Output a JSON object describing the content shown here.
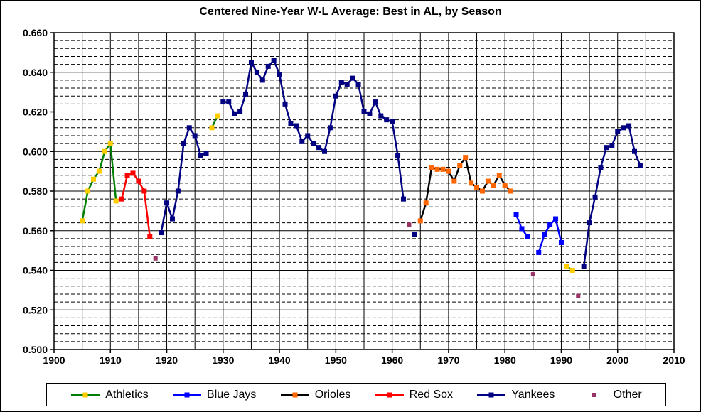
{
  "title": "Centered Nine-Year W-L Average: Best in AL, by Season",
  "chart_data": {
    "type": "line",
    "title": "Centered Nine-Year W-L Average: Best in AL, by Season",
    "xlabel": "",
    "ylabel": "",
    "xlim": [
      1900,
      2010
    ],
    "ylim": [
      0.5,
      0.66
    ],
    "x_grid_step": 5,
    "y_major_step": 0.02,
    "y_minor_step": 0.004,
    "grid": "major-solid-minor-dashed",
    "legend_position": "bottom",
    "x_ticks": [
      1900,
      1910,
      1920,
      1930,
      1940,
      1950,
      1960,
      1970,
      1980,
      1990,
      2000,
      2010
    ],
    "x_tick_labels": [
      "1900",
      "1910",
      "1920",
      "1930",
      "1940",
      "1950",
      "1960",
      "1970",
      "1980",
      "1990",
      "2000",
      "2010"
    ],
    "y_ticks": [
      0.66,
      0.64,
      0.62,
      0.6,
      0.58,
      0.56,
      0.54,
      0.52,
      0.5
    ],
    "y_tick_labels": [
      "0.660",
      "0.640",
      "0.620",
      "0.600",
      "0.580",
      "0.560",
      "0.540",
      "0.520",
      "0.500"
    ],
    "series": [
      {
        "name": "Athletics",
        "line_color": "#008000",
        "marker_color": "#FFCC00",
        "marker_only": false,
        "segments": [
          [
            [
              1905,
              0.565
            ],
            [
              1906,
              0.58
            ],
            [
              1907,
              0.586
            ],
            [
              1908,
              0.59
            ],
            [
              1909,
              0.6
            ],
            [
              1910,
              0.604
            ],
            [
              1911,
              0.575
            ]
          ],
          [
            [
              1928,
              0.612
            ],
            [
              1929,
              0.618
            ]
          ],
          [
            [
              1991,
              0.542
            ],
            [
              1992,
              0.54
            ]
          ]
        ]
      },
      {
        "name": "Blue Jays",
        "line_color": "#0000FF",
        "marker_color": "#0000FF",
        "marker_only": false,
        "segments": [
          [
            [
              1982,
              0.568
            ],
            [
              1983,
              0.561
            ],
            [
              1984,
              0.557
            ]
          ],
          [
            [
              1986,
              0.549
            ],
            [
              1987,
              0.558
            ],
            [
              1988,
              0.563
            ],
            [
              1989,
              0.566
            ],
            [
              1990,
              0.554
            ]
          ]
        ]
      },
      {
        "name": "Orioles",
        "line_color": "#000000",
        "marker_color": "#FF6600",
        "marker_only": false,
        "segments": [
          [
            [
              1965,
              0.565
            ],
            [
              1966,
              0.574
            ],
            [
              1967,
              0.592
            ],
            [
              1968,
              0.591
            ],
            [
              1969,
              0.591
            ],
            [
              1970,
              0.59
            ],
            [
              1971,
              0.585
            ],
            [
              1972,
              0.593
            ],
            [
              1973,
              0.597
            ],
            [
              1974,
              0.584
            ],
            [
              1975,
              0.582
            ],
            [
              1976,
              0.58
            ],
            [
              1977,
              0.585
            ],
            [
              1978,
              0.583
            ],
            [
              1979,
              0.588
            ],
            [
              1980,
              0.583
            ],
            [
              1981,
              0.58
            ]
          ]
        ]
      },
      {
        "name": "Red Sox",
        "line_color": "#FF0000",
        "marker_color": "#FF0000",
        "marker_only": false,
        "segments": [
          [
            [
              1912,
              0.576
            ],
            [
              1913,
              0.588
            ],
            [
              1914,
              0.589
            ],
            [
              1915,
              0.585
            ],
            [
              1916,
              0.58
            ],
            [
              1917,
              0.557
            ]
          ]
        ]
      },
      {
        "name": "Yankees",
        "line_color": "#000080",
        "marker_color": "#000080",
        "marker_only": false,
        "segments": [
          [
            [
              1919,
              0.559
            ],
            [
              1920,
              0.574
            ],
            [
              1921,
              0.566
            ],
            [
              1922,
              0.58
            ],
            [
              1923,
              0.604
            ],
            [
              1924,
              0.612
            ],
            [
              1925,
              0.608
            ],
            [
              1926,
              0.598
            ],
            [
              1927,
              0.599
            ]
          ],
          [
            [
              1930,
              0.625
            ],
            [
              1931,
              0.625
            ],
            [
              1932,
              0.619
            ],
            [
              1933,
              0.62
            ],
            [
              1934,
              0.629
            ],
            [
              1935,
              0.645
            ],
            [
              1936,
              0.64
            ],
            [
              1937,
              0.636
            ],
            [
              1938,
              0.643
            ],
            [
              1939,
              0.646
            ],
            [
              1940,
              0.639
            ],
            [
              1941,
              0.624
            ],
            [
              1942,
              0.614
            ],
            [
              1943,
              0.613
            ],
            [
              1944,
              0.605
            ],
            [
              1945,
              0.608
            ],
            [
              1946,
              0.604
            ],
            [
              1947,
              0.602
            ],
            [
              1948,
              0.6
            ],
            [
              1949,
              0.612
            ],
            [
              1950,
              0.628
            ],
            [
              1951,
              0.635
            ],
            [
              1952,
              0.634
            ],
            [
              1953,
              0.637
            ],
            [
              1954,
              0.634
            ],
            [
              1955,
              0.62
            ],
            [
              1956,
              0.619
            ],
            [
              1957,
              0.625
            ],
            [
              1958,
              0.618
            ],
            [
              1959,
              0.616
            ],
            [
              1960,
              0.615
            ],
            [
              1961,
              0.598
            ],
            [
              1962,
              0.576
            ]
          ],
          [
            [
              1964,
              0.558
            ]
          ],
          [
            [
              1994,
              0.542
            ],
            [
              1995,
              0.564
            ],
            [
              1996,
              0.577
            ],
            [
              1997,
              0.592
            ],
            [
              1998,
              0.602
            ],
            [
              1999,
              0.603
            ],
            [
              2000,
              0.61
            ],
            [
              2001,
              0.612
            ],
            [
              2002,
              0.613
            ],
            [
              2003,
              0.6
            ],
            [
              2004,
              0.593
            ]
          ]
        ]
      },
      {
        "name": "Other",
        "line_color": null,
        "marker_color": "#993366",
        "marker_only": true,
        "segments": [
          [
            [
              1918,
              0.546
            ]
          ],
          [
            [
              1963,
              0.563
            ]
          ],
          [
            [
              1985,
              0.538
            ]
          ],
          [
            [
              1993,
              0.527
            ]
          ]
        ]
      }
    ]
  },
  "legend": {
    "items": [
      "Athletics",
      "Blue Jays",
      "Orioles",
      "Red Sox",
      "Yankees",
      "Other"
    ]
  }
}
